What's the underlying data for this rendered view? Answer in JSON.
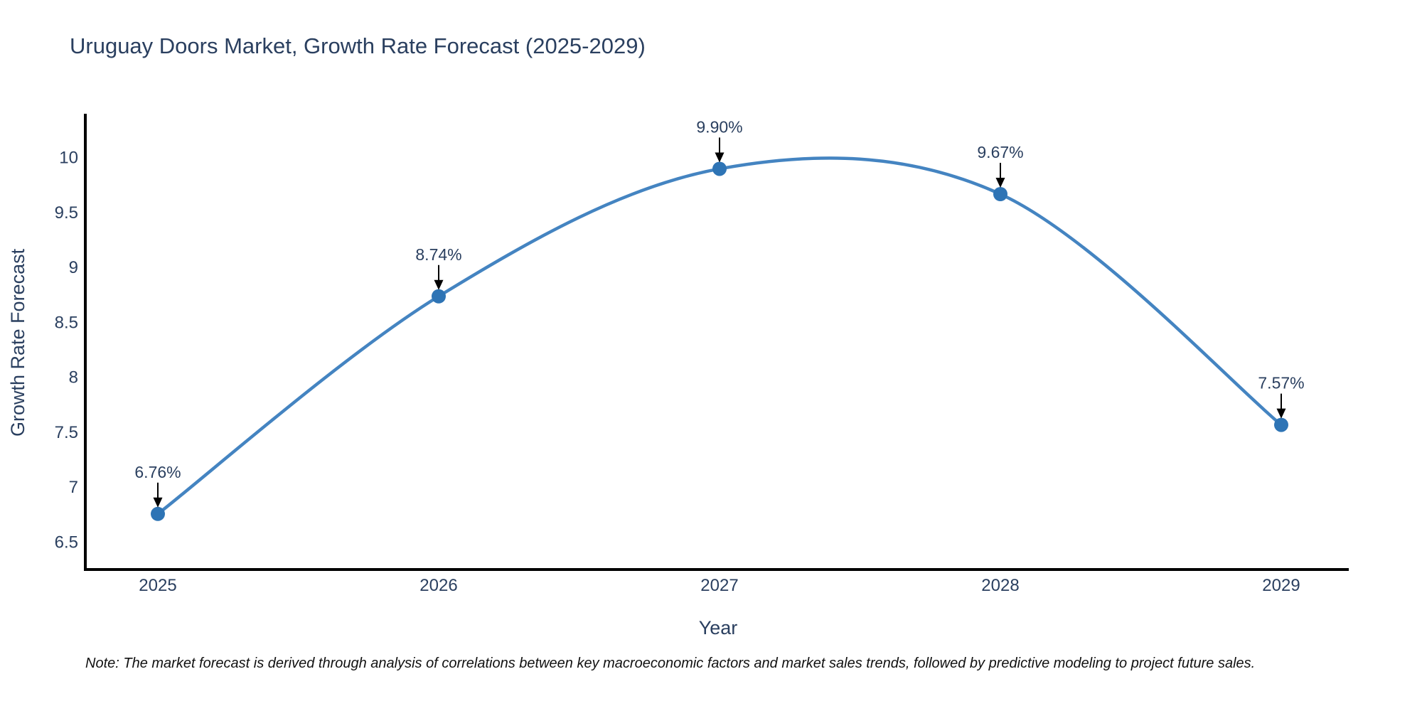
{
  "note": "Note: The market forecast is derived through analysis of correlations between key macroeconomic factors and market sales trends, followed by predictive modeling to project future sales.",
  "chart_data": {
    "type": "line",
    "title": "Uruguay Doors Market, Growth Rate Forecast (2025-2029)",
    "xlabel": "Year",
    "ylabel": "Growth Rate Forecast",
    "categories": [
      "2025",
      "2026",
      "2027",
      "2028",
      "2029"
    ],
    "values": [
      6.76,
      8.74,
      9.9,
      9.67,
      7.57
    ],
    "point_labels": [
      "6.76%",
      "8.74%",
      "9.90%",
      "9.67%",
      "7.57%"
    ],
    "y_ticks": [
      "6.5",
      "7",
      "7.5",
      "8",
      "8.5",
      "9",
      "9.5",
      "10"
    ],
    "y_tick_values": [
      6.5,
      7,
      7.5,
      8,
      8.5,
      9,
      9.5,
      10
    ],
    "ylim": [
      6.26,
      10.4
    ],
    "line_shape": "spline",
    "grid": false,
    "legend": "none",
    "colors": {
      "line": "#4484c1",
      "marker": "#2e74b5",
      "axis": "#000000",
      "text": "#2a3f5f",
      "annotation_arrow": "#000000",
      "note_text": "#111111",
      "background": "#ffffff"
    }
  }
}
